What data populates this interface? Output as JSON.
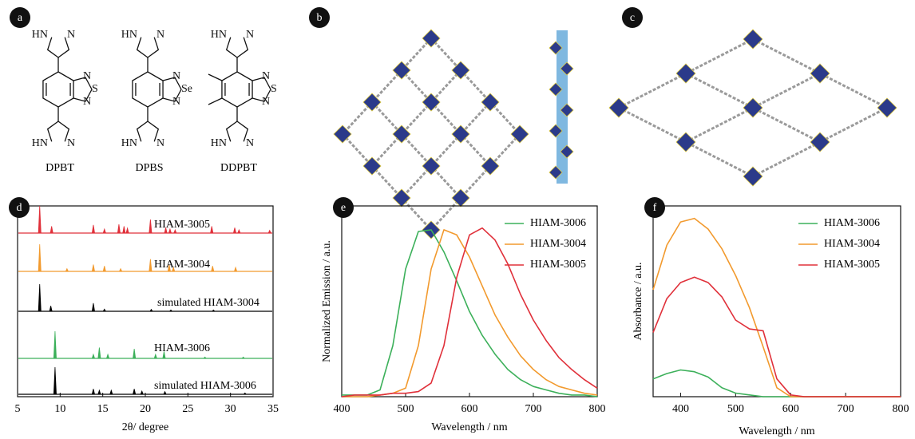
{
  "panels": {
    "a": {
      "label": "a",
      "compounds": [
        {
          "name": "DPBT",
          "atoms": [
            "HN",
            "N",
            "N",
            "S",
            "N",
            "HN",
            "N"
          ]
        },
        {
          "name": "DPBS",
          "atoms": [
            "HN",
            "N",
            "N",
            "Se",
            "N",
            "HN",
            "N"
          ]
        },
        {
          "name": "DDPBT",
          "atoms": [
            "HN",
            "N",
            "N",
            "S",
            "N",
            "HN",
            "N"
          ]
        }
      ]
    },
    "b": {
      "label": "b"
    },
    "c": {
      "label": "c"
    }
  },
  "chart_data": [
    {
      "type": "stick",
      "label": "d",
      "xlabel": "2θ/ degree",
      "xlim": [
        5,
        35
      ],
      "xticks": [
        5,
        10,
        15,
        20,
        25,
        30,
        35
      ],
      "ylim": [
        0,
        1
      ],
      "series": [
        {
          "name": "HIAM-3005",
          "color": "#e0303a",
          "x": [
            7.6,
            9.0,
            13.9,
            15.2,
            16.9,
            17.5,
            17.9,
            20.6,
            22.4,
            22.9,
            23.5,
            27.8,
            30.5,
            31.0,
            34.6
          ],
          "values": [
            1.0,
            0.25,
            0.3,
            0.15,
            0.32,
            0.25,
            0.18,
            0.5,
            0.2,
            0.15,
            0.12,
            0.25,
            0.2,
            0.12,
            0.1
          ]
        },
        {
          "name": "HIAM-3004",
          "color": "#f29a2e",
          "x": [
            7.6,
            10.8,
            13.9,
            15.2,
            17.1,
            20.6,
            22.8,
            23.3,
            27.9,
            30.6
          ],
          "values": [
            1.0,
            0.1,
            0.25,
            0.2,
            0.1,
            0.45,
            0.25,
            0.15,
            0.2,
            0.15
          ]
        },
        {
          "name": "simulated HIAM-3004",
          "color": "#000000",
          "x": [
            7.6,
            8.9,
            13.9,
            15.2,
            20.7,
            23.0,
            28.0
          ],
          "values": [
            1.0,
            0.2,
            0.3,
            0.08,
            0.07,
            0.05,
            0.05
          ]
        },
        {
          "name": "HIAM-3006",
          "color": "#3cb05a",
          "x": [
            9.4,
            13.9,
            14.6,
            15.6,
            18.7,
            21.2,
            22.2,
            27.0,
            31.5
          ],
          "values": [
            1.0,
            0.15,
            0.4,
            0.15,
            0.35,
            0.15,
            0.25,
            0.05,
            0.05
          ]
        },
        {
          "name": "simulated HIAM-3006",
          "color": "#000000",
          "x": [
            9.4,
            13.9,
            14.6,
            16.0,
            18.7,
            19.6,
            22.3,
            31.7
          ],
          "values": [
            1.0,
            0.2,
            0.15,
            0.15,
            0.2,
            0.12,
            0.1,
            0.05
          ]
        }
      ]
    },
    {
      "type": "line",
      "label": "e",
      "xlabel": "Wavelength / nm",
      "ylabel": "Normalized Emission / a.u.",
      "xlim": [
        400,
        800
      ],
      "xticks": [
        400,
        500,
        600,
        700,
        800
      ],
      "ylim": [
        0,
        1.12
      ],
      "x": [
        400,
        420,
        440,
        460,
        480,
        500,
        520,
        540,
        560,
        580,
        600,
        620,
        640,
        660,
        680,
        700,
        720,
        740,
        760,
        780,
        800
      ],
      "series": [
        {
          "name": "HIAM-3006",
          "color": "#3cb05a",
          "values": [
            0.01,
            0.01,
            0.01,
            0.04,
            0.3,
            0.75,
            0.97,
            0.98,
            0.85,
            0.68,
            0.5,
            0.36,
            0.25,
            0.16,
            0.1,
            0.06,
            0.04,
            0.02,
            0.01,
            0.01,
            0
          ]
        },
        {
          "name": "HIAM-3004",
          "color": "#f29a2e",
          "values": [
            0,
            0,
            0,
            0.01,
            0.02,
            0.05,
            0.3,
            0.75,
            0.98,
            0.95,
            0.82,
            0.65,
            0.48,
            0.35,
            0.24,
            0.16,
            0.1,
            0.06,
            0.04,
            0.02,
            0.01
          ]
        },
        {
          "name": "HIAM-3005",
          "color": "#e0303a",
          "values": [
            0,
            0.01,
            0.01,
            0.01,
            0.02,
            0.02,
            0.03,
            0.08,
            0.3,
            0.7,
            0.95,
            0.99,
            0.92,
            0.78,
            0.6,
            0.45,
            0.33,
            0.23,
            0.16,
            0.1,
            0.05
          ]
        }
      ]
    },
    {
      "type": "line",
      "label": "f",
      "xlabel": "Wavelength / nm",
      "ylabel": "Absorbance / a.u.",
      "xlim": [
        350,
        800
      ],
      "xticks": [
        400,
        500,
        600,
        700,
        800
      ],
      "ylim": [
        0,
        1.07
      ],
      "x": [
        350,
        375,
        400,
        425,
        450,
        475,
        500,
        525,
        550,
        575,
        600,
        625,
        650,
        675,
        700,
        725,
        750,
        775,
        800
      ],
      "series": [
        {
          "name": "HIAM-3006",
          "color": "#3cb05a",
          "values": [
            0.1,
            0.13,
            0.15,
            0.14,
            0.11,
            0.05,
            0.02,
            0.01,
            0,
            0,
            0,
            0,
            0,
            0,
            0,
            0,
            0,
            0,
            0
          ]
        },
        {
          "name": "HIAM-3004",
          "color": "#f29a2e",
          "values": [
            0.6,
            0.85,
            0.98,
            1.0,
            0.94,
            0.83,
            0.68,
            0.5,
            0.28,
            0.05,
            0,
            0,
            0,
            0,
            0,
            0,
            0,
            0,
            0
          ]
        },
        {
          "name": "HIAM-3005",
          "color": "#e0303a",
          "values": [
            0.36,
            0.55,
            0.64,
            0.67,
            0.64,
            0.56,
            0.43,
            0.38,
            0.37,
            0.1,
            0.01,
            0,
            0,
            0,
            0,
            0,
            0,
            0,
            0
          ]
        }
      ]
    }
  ]
}
